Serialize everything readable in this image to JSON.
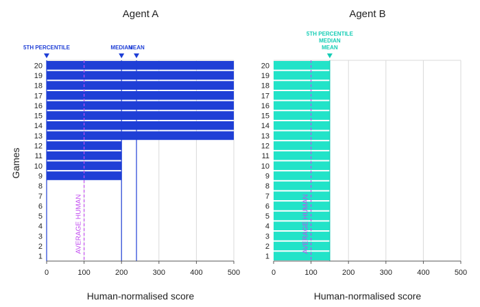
{
  "ylabel": "Games",
  "average_human_label": "AVERAGE HUMAN",
  "colors": {
    "agent_a": "#1f3fd6",
    "agent_b": "#22e3c8",
    "average_human": "#c24cf0",
    "grid": "#d9d9d9",
    "axis": "#555555"
  },
  "chart_data": [
    {
      "type": "bar",
      "orientation": "horizontal",
      "title": "Agent A",
      "xlabel": "Human-normalised score",
      "xlim": [
        0,
        500
      ],
      "xticks": [
        0,
        100,
        200,
        300,
        400,
        500
      ],
      "categories": [
        1,
        2,
        3,
        4,
        5,
        6,
        7,
        8,
        9,
        10,
        11,
        12,
        13,
        14,
        15,
        16,
        17,
        18,
        19,
        20
      ],
      "values": [
        0,
        0,
        0,
        0,
        0,
        0,
        0,
        0,
        200,
        200,
        200,
        200,
        500,
        500,
        500,
        500,
        500,
        500,
        500,
        500
      ],
      "reference_lines": {
        "average_human": 100,
        "fifth_percentile": 0,
        "median": 200,
        "mean": 240
      },
      "markers": [
        {
          "label": "5TH PERCENTILE",
          "x": 0
        },
        {
          "label": "MEDIAN",
          "x": 200
        },
        {
          "label": "MEAN",
          "x": 240
        }
      ]
    },
    {
      "type": "bar",
      "orientation": "horizontal",
      "title": "Agent B",
      "xlabel": "Human-normalised score",
      "xlim": [
        0,
        500
      ],
      "xticks": [
        0,
        100,
        200,
        300,
        400,
        500
      ],
      "categories": [
        1,
        2,
        3,
        4,
        5,
        6,
        7,
        8,
        9,
        10,
        11,
        12,
        13,
        14,
        15,
        16,
        17,
        18,
        19,
        20
      ],
      "values": [
        150,
        150,
        150,
        150,
        150,
        150,
        150,
        150,
        150,
        150,
        150,
        150,
        150,
        150,
        150,
        150,
        150,
        150,
        150,
        150
      ],
      "reference_lines": {
        "average_human": 100,
        "fifth_percentile": 150,
        "median": 150,
        "mean": 150
      },
      "markers": [
        {
          "label": "5TH PERCENTILE\nMEDIAN\nMEAN",
          "x": 150
        }
      ]
    }
  ]
}
